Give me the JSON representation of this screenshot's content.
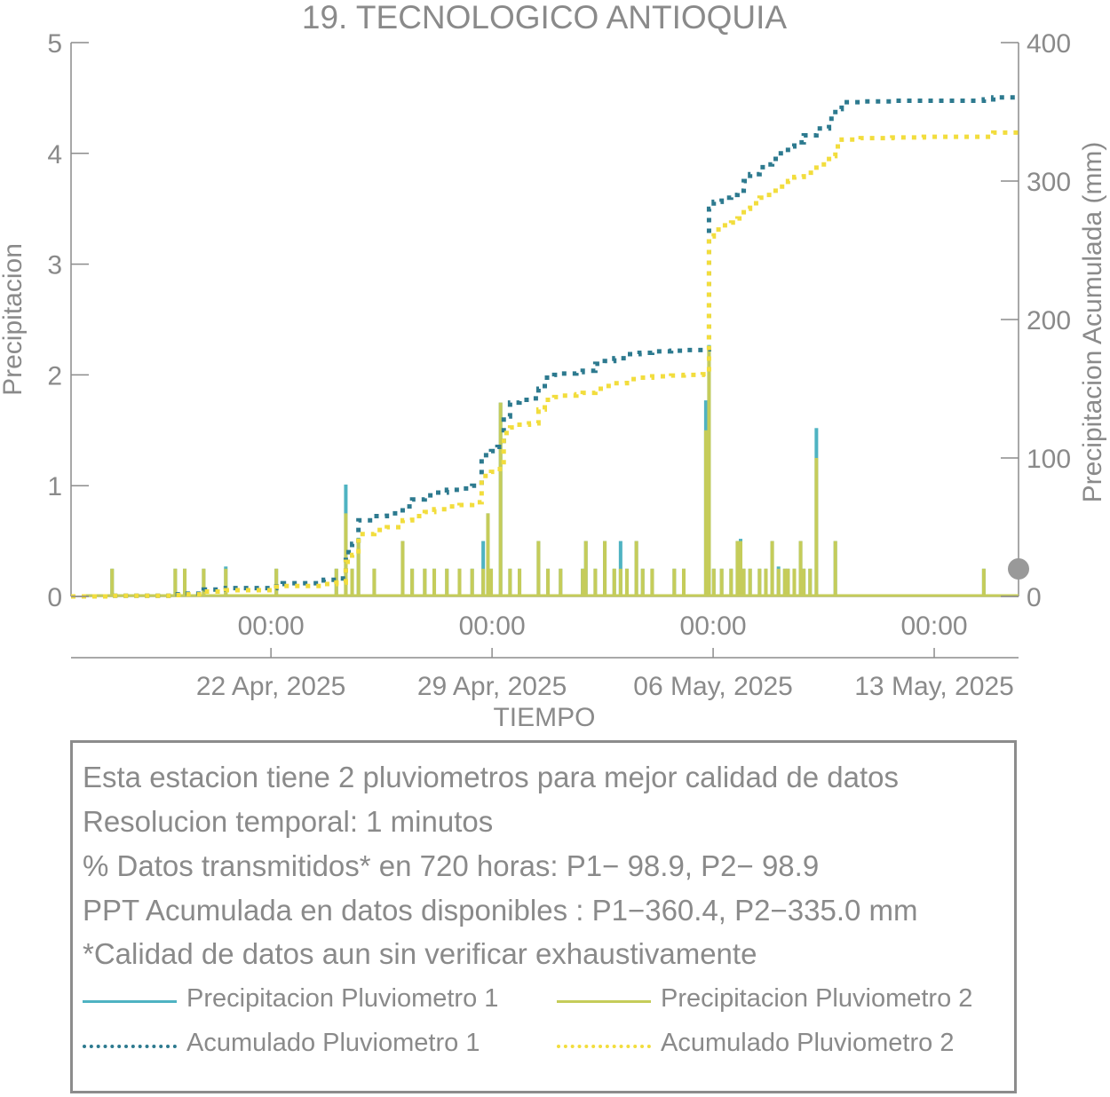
{
  "chart_data": {
    "type": "bar",
    "title": "19. TECNOLOGICO ANTIOQUIA",
    "xlabel": "TIEMPO",
    "ylabel": "Precipitacion",
    "y2label": "Precipitacion Acumulada (mm)",
    "ylim": [
      0,
      5
    ],
    "y2lim": [
      0,
      400
    ],
    "yticks": [
      "0",
      "1",
      "2",
      "3",
      "4",
      "5"
    ],
    "y2ticks": [
      "0",
      "100",
      "200",
      "300",
      "400"
    ],
    "xlim_days": [
      0,
      30
    ],
    "xticks": [
      {
        "day": 6.33,
        "time": "00:00",
        "date": "22 Apr, 2025"
      },
      {
        "day": 13.33,
        "time": "00:00",
        "date": "29 Apr, 2025"
      },
      {
        "day": 20.33,
        "time": "00:00",
        "date": "06 May, 2025"
      },
      {
        "day": 27.33,
        "time": "00:00",
        "date": "13 May, 2025"
      }
    ],
    "series": [
      {
        "name": "Precipitacion Pluviometro 1",
        "kind": "bar",
        "axis": "left",
        "color": "#4fb3c2",
        "x": [
          1.3,
          3.3,
          3.6,
          4.2,
          4.9,
          6.5,
          8.4,
          8.7,
          8.9,
          9.1,
          9.6,
          10.5,
          10.8,
          11.2,
          11.5,
          11.9,
          12.3,
          12.7,
          13.05,
          13.2,
          13.3,
          13.6,
          13.9,
          14.2,
          14.8,
          15.1,
          15.5,
          16.2,
          16.3,
          16.6,
          16.9,
          17.2,
          17.4,
          17.6,
          17.9,
          18.1,
          18.4,
          19.1,
          19.4,
          20.1,
          20.2,
          20.35,
          20.6,
          20.9,
          21.1,
          21.2,
          21.3,
          21.5,
          21.8,
          22.0,
          22.2,
          22.4,
          22.6,
          22.7,
          22.9,
          23.1,
          23.2,
          23.4,
          23.6,
          24.2,
          28.9
        ],
        "values": [
          0.25,
          0.25,
          0.25,
          0.25,
          0.27,
          0.25,
          0.25,
          1.01,
          0.25,
          0.53,
          0.25,
          0.5,
          0.25,
          0.25,
          0.25,
          0.25,
          0.25,
          0.25,
          0.5,
          0.75,
          0.25,
          1.75,
          0.25,
          0.25,
          0.5,
          0.25,
          0.25,
          0.25,
          0.5,
          0.25,
          0.5,
          0.25,
          0.5,
          0.25,
          0.5,
          0.25,
          0.25,
          0.25,
          0.25,
          1.77,
          2.27,
          0.25,
          0.25,
          0.25,
          0.5,
          0.52,
          0.25,
          0.25,
          0.25,
          0.25,
          0.5,
          0.27,
          0.25,
          0.25,
          0.25,
          0.5,
          0.25,
          0.25,
          1.52,
          0.5,
          0.25
        ]
      },
      {
        "name": "Precipitacion Pluviometro 2",
        "kind": "bar",
        "axis": "left",
        "color": "#c5cc5a",
        "x": [
          1.3,
          3.3,
          3.6,
          4.2,
          4.9,
          6.5,
          8.4,
          8.7,
          8.9,
          9.1,
          9.6,
          10.5,
          10.8,
          11.2,
          11.5,
          11.9,
          12.3,
          12.7,
          13.05,
          13.2,
          13.3,
          13.6,
          13.9,
          14.2,
          14.8,
          15.1,
          15.5,
          16.2,
          16.3,
          16.6,
          16.9,
          17.2,
          17.4,
          17.6,
          17.9,
          18.1,
          18.4,
          19.1,
          19.4,
          20.1,
          20.2,
          20.35,
          20.6,
          20.9,
          21.1,
          21.2,
          21.3,
          21.5,
          21.8,
          22.0,
          22.2,
          22.4,
          22.6,
          22.7,
          22.9,
          23.1,
          23.2,
          23.4,
          23.6,
          24.2,
          28.9
        ],
        "values": [
          0.25,
          0.25,
          0.25,
          0.25,
          0.25,
          0.25,
          0.25,
          0.75,
          0.25,
          0.5,
          0.25,
          0.5,
          0.25,
          0.25,
          0.25,
          0.25,
          0.25,
          0.25,
          0.25,
          0.75,
          0.25,
          1.75,
          0.25,
          0.25,
          0.5,
          0.25,
          0.25,
          0.25,
          0.5,
          0.25,
          0.5,
          0.25,
          0.25,
          0.25,
          0.5,
          0.25,
          0.25,
          0.25,
          0.25,
          1.5,
          2.25,
          0.25,
          0.25,
          0.25,
          0.5,
          0.5,
          0.25,
          0.25,
          0.25,
          0.25,
          0.5,
          0.25,
          0.25,
          0.25,
          0.25,
          0.5,
          0.25,
          0.25,
          1.25,
          0.5,
          0.25
        ]
      },
      {
        "name": "Acumulado Pluviometro 1",
        "kind": "line",
        "axis": "right",
        "color": "#2d7a8f",
        "dash": "dotted",
        "x": [
          0,
          1.3,
          3.3,
          3.6,
          4.2,
          4.9,
          6.5,
          6.7,
          8.0,
          8.4,
          8.7,
          8.9,
          9.1,
          9.6,
          10.0,
          10.5,
          10.8,
          11.2,
          11.5,
          11.9,
          12.3,
          12.7,
          13.0,
          13.05,
          13.3,
          13.5,
          13.7,
          13.9,
          14.2,
          14.5,
          14.8,
          15.0,
          15.3,
          15.5,
          16.0,
          16.2,
          16.6,
          16.9,
          17.2,
          17.6,
          18.0,
          18.4,
          19.0,
          19.4,
          20.0,
          20.2,
          20.35,
          20.6,
          20.9,
          21.1,
          21.3,
          21.5,
          21.8,
          22.0,
          22.2,
          22.4,
          22.7,
          22.9,
          23.2,
          23.6,
          24.0,
          24.2,
          24.4,
          25.0,
          26.0,
          27.0,
          28.0,
          28.9,
          29.2,
          30.0
        ],
        "values": [
          0,
          0.5,
          1.5,
          2.0,
          5.0,
          6.0,
          9.0,
          9.5,
          12.0,
          13.0,
          32.0,
          38.0,
          55.0,
          58.0,
          60.0,
          65.0,
          70.0,
          73.0,
          75.0,
          77.0,
          78.0,
          80.0,
          100.0,
          102.0,
          105.0,
          108.0,
          130.0,
          140.0,
          142.0,
          143.0,
          150.0,
          158.0,
          160.0,
          161.0,
          162.0,
          163.0,
          168.0,
          170.0,
          172.0,
          175.0,
          176.0,
          177.0,
          177.5,
          178.0,
          178.5,
          280.0,
          285.0,
          288.0,
          290.0,
          293.0,
          300.0,
          305.0,
          310.0,
          312.0,
          316.0,
          320.0,
          325.0,
          328.0,
          333.0,
          338.0,
          345.0,
          352.0,
          357.0,
          357.5,
          358.0,
          358.0,
          358.0,
          359.0,
          360.4,
          360.4
        ]
      },
      {
        "name": "Acumulado Pluviometro 2",
        "kind": "line",
        "axis": "right",
        "color": "#f2dd3d",
        "dash": "dotted",
        "x": [
          0,
          1.3,
          3.3,
          3.6,
          4.2,
          4.9,
          6.5,
          6.7,
          8.0,
          8.4,
          8.7,
          8.9,
          9.1,
          9.6,
          10.0,
          10.5,
          10.8,
          11.2,
          11.5,
          11.9,
          12.3,
          12.7,
          13.0,
          13.05,
          13.3,
          13.5,
          13.7,
          13.9,
          14.2,
          14.5,
          14.8,
          15.0,
          15.3,
          15.5,
          16.0,
          16.2,
          16.6,
          16.9,
          17.2,
          17.6,
          18.0,
          18.4,
          19.0,
          19.4,
          20.0,
          20.2,
          20.35,
          20.6,
          20.9,
          21.1,
          21.3,
          21.5,
          21.8,
          22.0,
          22.2,
          22.4,
          22.7,
          22.9,
          23.2,
          23.6,
          24.0,
          24.2,
          24.4,
          25.0,
          26.0,
          27.0,
          28.0,
          28.9,
          29.2,
          30.0
        ],
        "values": [
          0,
          0.5,
          1.0,
          1.5,
          3.5,
          4.5,
          7.0,
          7.5,
          9.0,
          10.0,
          25.0,
          30.0,
          45.0,
          48.0,
          50.0,
          55.0,
          58.0,
          61.0,
          63.0,
          65.0,
          66.0,
          68.0,
          85.0,
          87.0,
          90.0,
          92.0,
          118.0,
          122.0,
          124.0,
          125.0,
          135.0,
          142.0,
          144.0,
          145.0,
          146.0,
          147.0,
          150.0,
          152.0,
          154.0,
          157.0,
          158.0,
          159.0,
          159.5,
          160.0,
          160.5,
          260.0,
          265.0,
          268.0,
          270.0,
          273.0,
          280.0,
          284.0,
          288.0,
          290.0,
          293.0,
          296.0,
          300.0,
          303.0,
          306.0,
          312.0,
          318.0,
          325.0,
          330.0,
          331.0,
          331.5,
          332.0,
          332.0,
          332.0,
          335.0,
          335.0
        ]
      }
    ],
    "legend_placement": "bottom"
  },
  "info": {
    "line1": "Esta estacion tiene 2 pluviometros para mejor calidad de datos",
    "line2": "Resolucion temporal: 1 minutos",
    "line3": "% Datos transmitidos* en 720 horas: P1− 98.9, P2− 98.9",
    "line4": "PPT Acumulada en datos disponibles : P1−360.4, P2−335.0 mm",
    "line5": "*Calidad de datos aun sin verificar exhaustivamente"
  },
  "legend": [
    {
      "label": "Precipitacion Pluviometro 1",
      "color": "#4fb3c2",
      "style": "solid"
    },
    {
      "label": "Precipitacion Pluviometro 2",
      "color": "#c5cc5a",
      "style": "solid"
    },
    {
      "label": "Acumulado Pluviometro 1",
      "color": "#2d7a8f",
      "style": "dotted"
    },
    {
      "label": "Acumulado Pluviometro 2",
      "color": "#f2dd3d",
      "style": "dotted"
    }
  ],
  "colors": {
    "axis": "#8c8c8c",
    "text": "#8a8a8a",
    "marker": "#999999"
  }
}
